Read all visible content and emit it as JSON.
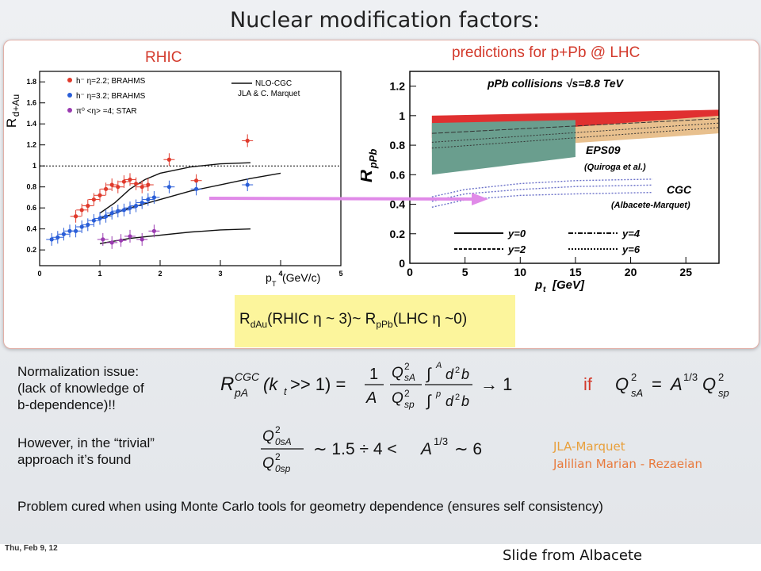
{
  "slide": {
    "title": "Nuclear modification factors:",
    "rhic_heading": "RHIC",
    "lhc_heading": "predictions for p+Pb @ LHC",
    "comparison": {
      "lhs": "R",
      "lhs_sub": "dAu",
      "mid": "(RHIC η ~ 3)~ R",
      "rhs_sub": "pPb",
      "rhs": "(LHC η ~0)"
    },
    "normalization_text": [
      "Normalization issue:",
      "(lack of knowledge of",
      "b-dependence)!!"
    ],
    "trivial_text": [
      "However, in the “trivial”",
      "approach it’s found"
    ],
    "authors": [
      {
        "name": "JLA-Marquet",
        "color": "#e8a03c"
      },
      {
        "name": "Jalilian Marian - Rezaeian",
        "color": "#e87a3c"
      }
    ],
    "problem_text": "Problem cured when using Monte Carlo tools for geometry dependence (ensures self consistency)",
    "formula_if": "if",
    "date": "Thu, Feb 9, 12",
    "credit": "Slide from Albacete"
  },
  "chart_data": [
    {
      "type": "scatter",
      "ylabel": "R",
      "ylabel_sub": "d+Au",
      "xlabel": "p",
      "xlabel_sub": "T",
      "xlabel_unit": "(GeV/c)",
      "xlim": [
        0,
        5
      ],
      "ylim": [
        0.05,
        1.9
      ],
      "xticks": [
        0,
        1,
        2,
        3,
        4,
        5
      ],
      "yticks": [
        0.2,
        0.4,
        0.6,
        0.8,
        1.0,
        1.2,
        1.4,
        1.6,
        1.8
      ],
      "ytick_labels": [
        "0.2",
        "0.4",
        "0.6",
        "0.8",
        "1",
        "1.2",
        "1.4",
        "1.6",
        "1.8"
      ],
      "legend": [
        {
          "label": "h⁻ η=2.2; BRAHMS",
          "color": "#e03a2c"
        },
        {
          "label": "h⁻ η=3.2; BRAHMS",
          "color": "#2a5ed8"
        },
        {
          "label": "π⁰ <η> =4; STAR",
          "color": "#9a3ab0"
        }
      ],
      "model_legend": [
        "NLO-CGC",
        "JLA & C. Marquet"
      ],
      "series": [
        {
          "name": "h⁻ η=2.2; BRAHMS",
          "color": "#e03a2c",
          "x": [
            0.6,
            0.7,
            0.8,
            0.9,
            1.0,
            1.1,
            1.2,
            1.3,
            1.4,
            1.5,
            1.6,
            1.7,
            1.8,
            2.15,
            2.6,
            3.45
          ],
          "y": [
            0.52,
            0.58,
            0.62,
            0.68,
            0.72,
            0.78,
            0.82,
            0.8,
            0.85,
            0.87,
            0.83,
            0.8,
            0.82,
            1.06,
            0.86,
            1.24
          ]
        },
        {
          "name": "h⁻ η=3.2; BRAHMS",
          "color": "#2a5ed8",
          "x": [
            0.2,
            0.3,
            0.4,
            0.5,
            0.6,
            0.7,
            0.8,
            0.9,
            1.0,
            1.1,
            1.2,
            1.3,
            1.4,
            1.5,
            1.6,
            1.7,
            1.8,
            1.9,
            2.15,
            2.6,
            3.45
          ],
          "y": [
            0.3,
            0.32,
            0.35,
            0.38,
            0.38,
            0.42,
            0.44,
            0.48,
            0.5,
            0.52,
            0.55,
            0.57,
            0.58,
            0.6,
            0.62,
            0.65,
            0.68,
            0.7,
            0.8,
            0.78,
            0.82
          ]
        },
        {
          "name": "π⁰ <η> =4; STAR",
          "color": "#9a3ab0",
          "x": [
            1.05,
            1.2,
            1.35,
            1.5,
            1.7,
            1.9
          ],
          "y": [
            0.3,
            0.27,
            0.29,
            0.33,
            0.3,
            0.38
          ]
        }
      ],
      "curves": [
        {
          "x": [
            1.0,
            1.25,
            1.5,
            1.75,
            2.0,
            2.5,
            3.0,
            3.5
          ],
          "y": [
            0.55,
            0.65,
            0.78,
            0.87,
            0.93,
            0.99,
            1.02,
            1.03
          ]
        },
        {
          "x": [
            1.0,
            1.5,
            2.0,
            2.5,
            3.0,
            3.5,
            4.0
          ],
          "y": [
            0.5,
            0.6,
            0.68,
            0.76,
            0.82,
            0.88,
            0.93
          ]
        },
        {
          "x": [
            1.0,
            1.5,
            2.0,
            2.5,
            3.0,
            3.5
          ],
          "y": [
            0.26,
            0.31,
            0.34,
            0.37,
            0.39,
            0.4
          ]
        }
      ],
      "reference_line": 1.0
    },
    {
      "type": "area",
      "title": "pPb collisions √s=8.8 TeV",
      "ylabel": "R",
      "ylabel_sub": "pPb",
      "xlabel": "p",
      "xlabel_sub": "t",
      "xlabel_unit": "[GeV]",
      "xlim": [
        0,
        28
      ],
      "ylim": [
        0,
        1.3
      ],
      "xticks": [
        0,
        5,
        10,
        15,
        20,
        25
      ],
      "yticks": [
        0,
        0.2,
        0.4,
        0.6,
        0.8,
        1.0,
        1.2
      ],
      "ytick_labels": [
        "0",
        "0.2",
        "0.4",
        "0.6",
        "0.8",
        "1",
        "1.2"
      ],
      "labels": [
        "EPS09",
        "(Quiroga et al.)",
        "CGC",
        "(Albacete-Marquet)"
      ],
      "legend": [
        "y=0",
        "y=2",
        "y=4",
        "y=6"
      ],
      "bands": [
        {
          "name": "EPS09",
          "color": "#e8c08e",
          "x": [
            2,
            28
          ],
          "upper": [
            1.0,
            1.02
          ],
          "lower": [
            0.75,
            0.88
          ]
        },
        {
          "name": "red",
          "color": "#e03030",
          "x": [
            2,
            28
          ],
          "upper": [
            1.0,
            1.04
          ],
          "lower": [
            0.85,
            1.0
          ]
        },
        {
          "name": "green",
          "color": "#6a9e8e",
          "x": [
            2,
            15
          ],
          "upper": [
            0.95,
            0.97
          ],
          "lower": [
            0.6,
            0.72
          ]
        }
      ],
      "cgc_curves": [
        {
          "x": [
            2,
            5,
            10,
            15,
            22
          ],
          "y": [
            0.45,
            0.5,
            0.54,
            0.56,
            0.57
          ]
        },
        {
          "x": [
            2,
            5,
            10,
            15,
            22
          ],
          "y": [
            0.42,
            0.47,
            0.5,
            0.52,
            0.53
          ]
        },
        {
          "x": [
            2,
            5,
            10,
            15,
            22
          ],
          "y": [
            0.38,
            0.43,
            0.46,
            0.47,
            0.48
          ]
        }
      ]
    }
  ]
}
